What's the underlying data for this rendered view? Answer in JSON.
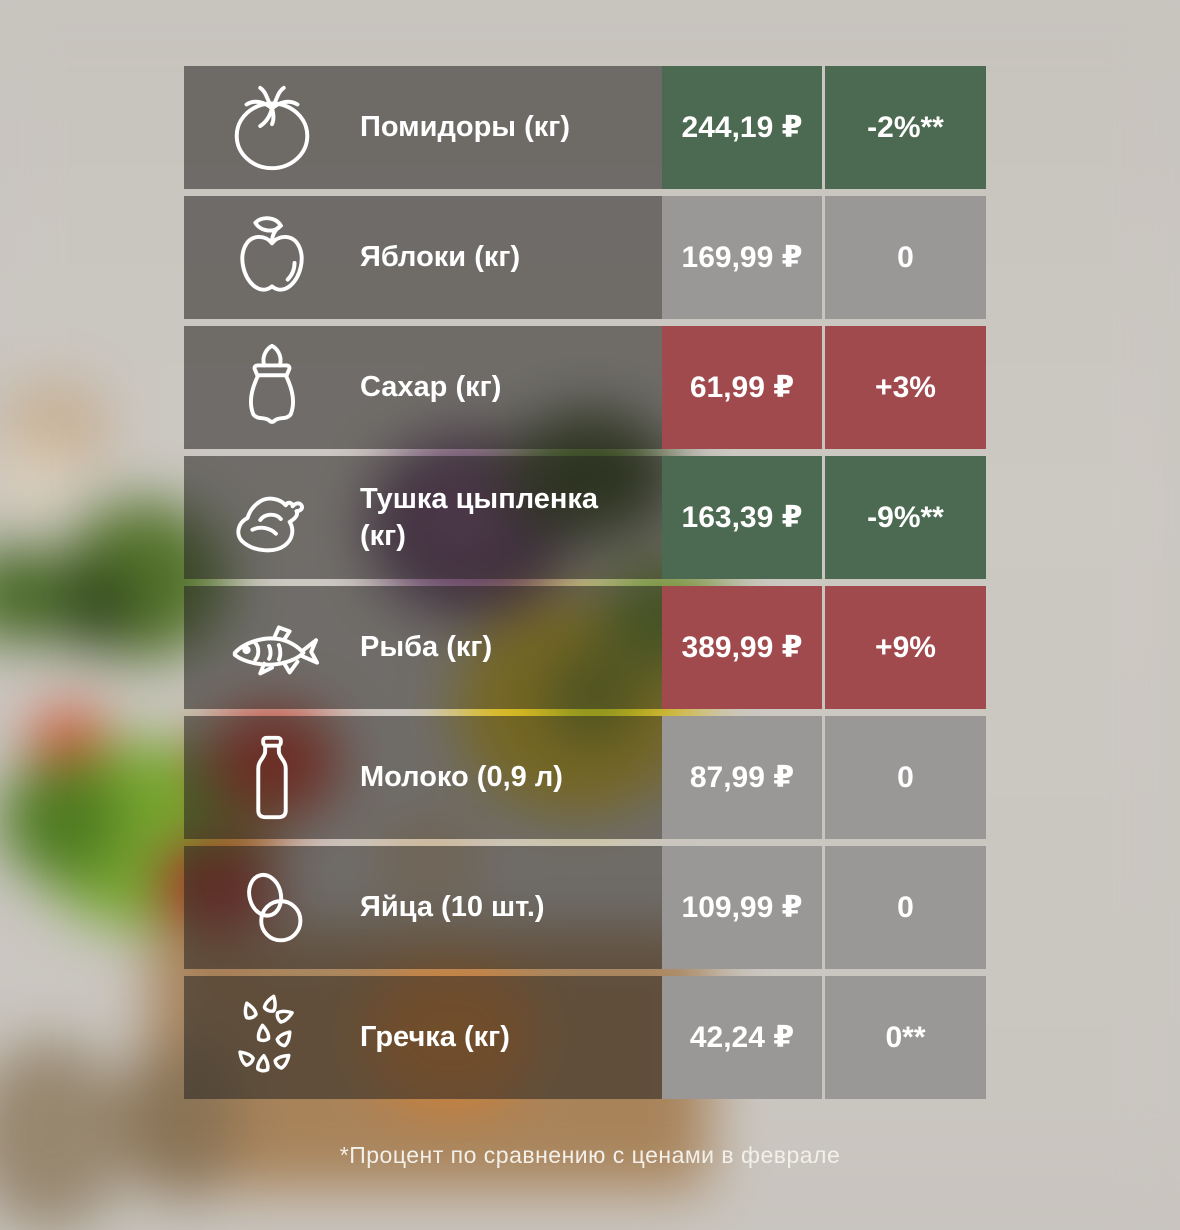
{
  "chart_data": {
    "type": "table",
    "title": "",
    "columns": [
      "product",
      "price",
      "change_percent"
    ],
    "rows": [
      {
        "icon": "tomato-icon",
        "label": "Помидоры (кг)",
        "price": "244,19 ₽",
        "change": "-2%**",
        "trend": "down"
      },
      {
        "icon": "apple-icon",
        "label": "Яблоки (кг)",
        "price": "169,99 ₽",
        "change": "0",
        "trend": "neutral"
      },
      {
        "icon": "sugar-sack-icon",
        "label": "Сахар (кг)",
        "price": "61,99 ₽",
        "change": "+3%",
        "trend": "up"
      },
      {
        "icon": "chicken-icon",
        "label": "Тушка цыпленка (кг)",
        "price": "163,39 ₽",
        "change": "-9%**",
        "trend": "down"
      },
      {
        "icon": "fish-icon",
        "label": "Рыба (кг)",
        "price": "389,99 ₽",
        "change": "+9%",
        "trend": "up"
      },
      {
        "icon": "milk-bottle-icon",
        "label": "Молоко (0,9 л)",
        "price": "87,99 ₽",
        "change": "0",
        "trend": "neutral"
      },
      {
        "icon": "eggs-icon",
        "label": "Яйца (10 шт.)",
        "price": "109,99 ₽",
        "change": "0",
        "trend": "neutral"
      },
      {
        "icon": "buckwheat-icon",
        "label": "Гречка (кг)",
        "price": "42,24 ₽",
        "change": "0**",
        "trend": "neutral"
      }
    ],
    "footnote": "*Процент по сравнению с ценами в феврале"
  },
  "colors": {
    "increase": "#a14a4d",
    "decrease": "#4c6951",
    "neutral": "#9a9896",
    "label_bg": "rgba(40,38,36,0.56)",
    "divider": "#c8c5c0",
    "text": "#ffffff"
  }
}
